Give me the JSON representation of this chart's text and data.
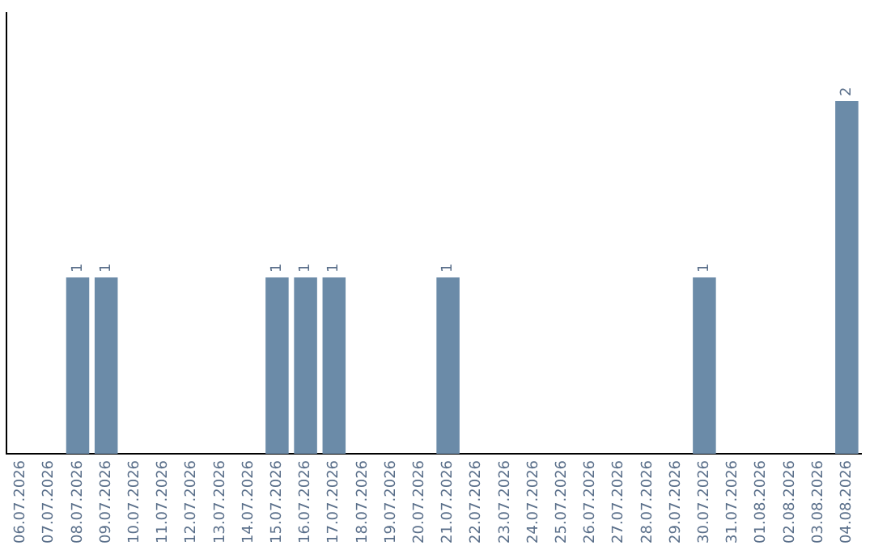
{
  "chart_data": {
    "type": "bar",
    "categories": [
      "06.07.2026",
      "07.07.2026",
      "08.07.2026",
      "09.07.2026",
      "10.07.2026",
      "11.07.2026",
      "12.07.2026",
      "13.07.2026",
      "14.07.2026",
      "15.07.2026",
      "16.07.2026",
      "17.07.2026",
      "18.07.2026",
      "19.07.2026",
      "20.07.2026",
      "21.07.2026",
      "22.07.2026",
      "23.07.2026",
      "24.07.2026",
      "25.07.2026",
      "26.07.2026",
      "27.07.2026",
      "28.07.2026",
      "29.07.2026",
      "30.07.2026",
      "31.07.2026",
      "01.08.2026",
      "02.08.2026",
      "03.08.2026",
      "04.08.2026"
    ],
    "values": [
      0,
      0,
      1,
      1,
      0,
      0,
      0,
      0,
      0,
      1,
      1,
      1,
      0,
      0,
      0,
      1,
      0,
      0,
      0,
      0,
      0,
      0,
      0,
      0,
      1,
      0,
      0,
      0,
      0,
      2
    ],
    "color": "#6b8ba8",
    "value_labels": [
      null,
      null,
      "1",
      "1",
      null,
      null,
      null,
      null,
      null,
      "1",
      "1",
      "1",
      null,
      null,
      null,
      "1",
      null,
      null,
      null,
      null,
      null,
      null,
      null,
      null,
      "1",
      null,
      null,
      null,
      null,
      "2"
    ],
    "tick_labels": "x",
    "grid": false,
    "legend": false
  }
}
